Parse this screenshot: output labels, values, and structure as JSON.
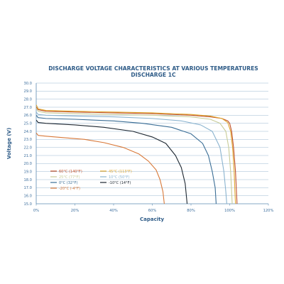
{
  "chart_data": {
    "type": "line",
    "title": "DISCHARGE VOLTAGE CHARACTERISTICS AT VARIOUS TEMPERATURES",
    "subtitle": "DISCHARGE 1C",
    "xlabel": "Capacity",
    "ylabel": "Voltage (V)",
    "xlim": [
      0,
      120
    ],
    "ylim": [
      15.0,
      30.0
    ],
    "x_ticks": [
      "0%",
      "20%",
      "40%",
      "60%",
      "80%",
      "100%",
      "120%"
    ],
    "y_ticks": [
      "15.0",
      "16.0",
      "17.0",
      "18.0",
      "19.0",
      "20.0",
      "21.0",
      "22.0",
      "23.0",
      "24.0",
      "25.0",
      "26.0",
      "27.0",
      "28.0",
      "29.0",
      "30.0"
    ],
    "grid": "horizontal",
    "legend_position": "bottom-left",
    "series": [
      {
        "name": "60°C (140°F)",
        "color": "#c0502a",
        "points": [
          [
            0,
            27.0
          ],
          [
            1,
            26.7
          ],
          [
            5,
            26.5
          ],
          [
            20,
            26.4
          ],
          [
            40,
            26.3
          ],
          [
            60,
            26.2
          ],
          [
            80,
            26.0
          ],
          [
            90,
            25.8
          ],
          [
            96,
            25.6
          ],
          [
            99,
            25.3
          ],
          [
            100,
            25.0
          ],
          [
            101,
            24.0
          ],
          [
            102,
            22.0
          ],
          [
            103,
            19.0
          ],
          [
            103.5,
            16.5
          ],
          [
            103.8,
            15.0
          ]
        ]
      },
      {
        "name": "45°C (113°F)",
        "color": "#e0a830",
        "points": [
          [
            0,
            27.3
          ],
          [
            1,
            26.8
          ],
          [
            5,
            26.6
          ],
          [
            20,
            26.5
          ],
          [
            40,
            26.4
          ],
          [
            60,
            26.3
          ],
          [
            80,
            26.1
          ],
          [
            90,
            25.9
          ],
          [
            96,
            25.6
          ],
          [
            99,
            25.1
          ],
          [
            100.5,
            24.0
          ],
          [
            101.5,
            22.0
          ],
          [
            102.3,
            19.0
          ],
          [
            102.7,
            16.5
          ],
          [
            103,
            15.0
          ]
        ]
      },
      {
        "name": "25°C (77°F)",
        "color": "#c8cc98",
        "points": [
          [
            0,
            26.9
          ],
          [
            1,
            26.5
          ],
          [
            5,
            26.3
          ],
          [
            20,
            26.2
          ],
          [
            40,
            26.1
          ],
          [
            60,
            26.0
          ],
          [
            80,
            25.8
          ],
          [
            90,
            25.5
          ],
          [
            95,
            25.0
          ],
          [
            98,
            24.0
          ],
          [
            99.5,
            22.0
          ],
          [
            100.5,
            19.0
          ],
          [
            101,
            16.5
          ],
          [
            101.3,
            15.0
          ]
        ]
      },
      {
        "name": "10°C (50°F)",
        "color": "#8ab3cf",
        "points": [
          [
            0,
            26.4
          ],
          [
            1,
            26.1
          ],
          [
            5,
            26.0
          ],
          [
            20,
            25.9
          ],
          [
            40,
            25.8
          ],
          [
            60,
            25.6
          ],
          [
            75,
            25.3
          ],
          [
            85,
            24.8
          ],
          [
            91,
            24.0
          ],
          [
            95,
            22.0
          ],
          [
            97,
            19.0
          ],
          [
            98,
            16.5
          ],
          [
            98.5,
            15.0
          ]
        ]
      },
      {
        "name": "0°C (32°F)",
        "color": "#3a6d95",
        "points": [
          [
            0,
            26.0
          ],
          [
            1,
            25.7
          ],
          [
            5,
            25.6
          ],
          [
            20,
            25.5
          ],
          [
            40,
            25.3
          ],
          [
            55,
            25.0
          ],
          [
            70,
            24.5
          ],
          [
            80,
            23.7
          ],
          [
            86,
            22.5
          ],
          [
            89,
            21.0
          ],
          [
            91,
            19.0
          ],
          [
            92.5,
            17.0
          ],
          [
            93,
            15.0
          ]
        ]
      },
      {
        "name": "-10°C (14°F)",
        "color": "#1c2630",
        "points": [
          [
            0,
            25.4
          ],
          [
            1,
            25.1
          ],
          [
            5,
            25.0
          ],
          [
            20,
            24.8
          ],
          [
            35,
            24.5
          ],
          [
            50,
            24.0
          ],
          [
            60,
            23.3
          ],
          [
            67,
            22.5
          ],
          [
            72,
            21.0
          ],
          [
            75,
            19.5
          ],
          [
            77,
            17.5
          ],
          [
            78,
            15.0
          ]
        ]
      },
      {
        "name": "-20°C (-4°F)",
        "color": "#d87838",
        "points": [
          [
            0,
            23.8
          ],
          [
            1,
            23.5
          ],
          [
            5,
            23.4
          ],
          [
            15,
            23.2
          ],
          [
            25,
            23.0
          ],
          [
            35,
            22.6
          ],
          [
            45,
            22.0
          ],
          [
            53,
            21.2
          ],
          [
            58,
            20.3
          ],
          [
            62,
            19.2
          ],
          [
            64,
            18.0
          ],
          [
            65.5,
            16.5
          ],
          [
            66.2,
            15.0
          ]
        ]
      }
    ]
  }
}
